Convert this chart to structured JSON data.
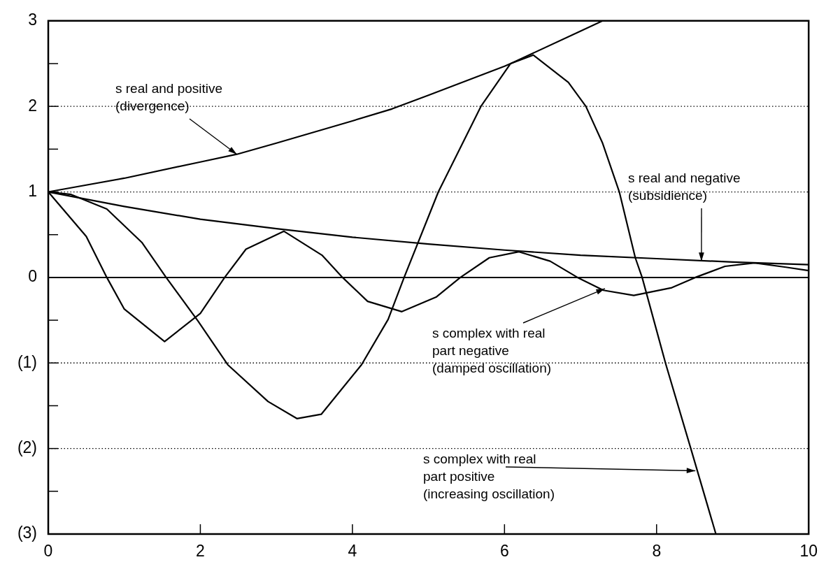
{
  "chart_data": {
    "type": "line",
    "xlim": [
      0,
      10
    ],
    "ylim": [
      -3,
      3
    ],
    "xticks": [
      0,
      2,
      4,
      6,
      8,
      10
    ],
    "yticks": [
      3,
      {
        "value": 2.5,
        "label": null
      },
      2,
      {
        "value": 1.5,
        "label": null
      },
      1,
      {
        "value": 0.5,
        "label": null
      },
      0,
      {
        "value": -0.5,
        "label": null
      },
      {
        "value": -1,
        "label": "(1)"
      },
      {
        "value": -1.5,
        "label": null
      },
      {
        "value": -2,
        "label": "(2)"
      },
      {
        "value": -2.5,
        "label": null
      },
      {
        "value": -3,
        "label": "(3)"
      }
    ],
    "grid": "y",
    "marker": "none",
    "line_style": "solid",
    "legend": false,
    "ref_lines": [
      {
        "axis": "y",
        "value": 0,
        "color": "#000000",
        "line_style": "solid"
      }
    ],
    "series": [
      {
        "color": "#000000",
        "x": [
          0,
          1,
          2,
          2.48,
          3,
          4,
          4.52,
          5,
          6,
          6.08,
          7,
          7.29
        ],
        "values": [
          1,
          1.16,
          1.35,
          1.44,
          1.57,
          1.83,
          1.97,
          2.13,
          2.47,
          2.5,
          2.88,
          3.0
        ]
      },
      {
        "color": "#000000",
        "x": [
          0,
          1,
          2,
          3,
          4,
          5,
          6,
          7,
          8,
          9,
          10
        ],
        "values": [
          1,
          0.83,
          0.68,
          0.57,
          0.47,
          0.39,
          0.32,
          0.26,
          0.22,
          0.18,
          0.15
        ]
      },
      {
        "color": "#000000",
        "x": [
          0,
          0.5,
          0.77,
          1,
          1.53,
          2,
          2.32,
          2.6,
          3.1,
          3.6,
          3.87,
          4.2,
          4.65,
          5.1,
          5.42,
          5.8,
          6.19,
          6.6,
          6.96,
          7.3,
          7.7,
          8.2,
          8.51,
          8.9,
          9.29,
          9.7,
          10
        ],
        "values": [
          1,
          0.48,
          0,
          -0.37,
          -0.75,
          -0.42,
          0,
          0.33,
          0.54,
          0.26,
          0,
          -0.28,
          -0.4,
          -0.23,
          0,
          0.23,
          0.3,
          0.19,
          0,
          -0.15,
          -0.21,
          -0.12,
          0,
          0.13,
          0.17,
          0.12,
          0.08
        ]
      },
      {
        "color": "#000000",
        "x": [
          0,
          0.3,
          0.77,
          1.23,
          1.55,
          1.97,
          2.36,
          2.89,
          3.27,
          3.59,
          4.12,
          4.47,
          4.68,
          5.13,
          5.69,
          6.08,
          6.38,
          6.84,
          7.07,
          7.29,
          7.51,
          7.72,
          7.81,
          8.12,
          8.45,
          8.78
        ],
        "values": [
          1,
          0.97,
          0.8,
          0.41,
          0,
          -0.51,
          -1.02,
          -1.45,
          -1.65,
          -1.6,
          -1.02,
          -0.49,
          0,
          1.0,
          2.0,
          2.5,
          2.6,
          2.28,
          2.0,
          1.57,
          1.0,
          0.23,
          0,
          -1.01,
          -2.0,
          -3.0
        ]
      }
    ],
    "annotations": [
      {
        "text": "s real and positive\n(divergence)",
        "x": 2.48,
        "y": 1.44
      },
      {
        "text": "s real and negative\n(subsidience)",
        "x": 8.59,
        "y": 0.19
      },
      {
        "text": "s complex with real\npart negative\n(damped oscillation)",
        "x": 7.32,
        "y": -0.13
      },
      {
        "text": "s complex with real\npart positive\n(increasing oscillation)",
        "x": 8.51,
        "y": -2.26
      }
    ]
  }
}
